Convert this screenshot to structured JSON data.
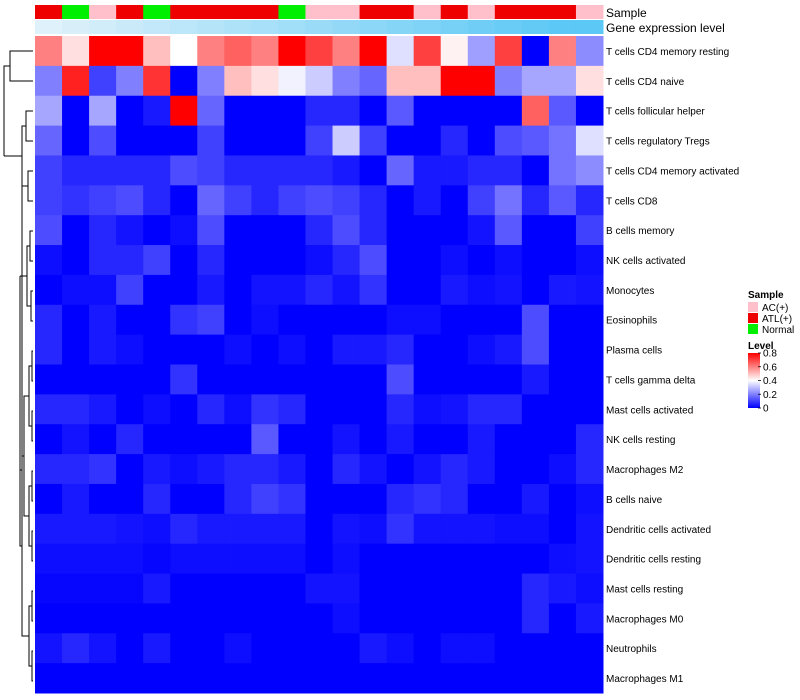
{
  "chart_data": {
    "type": "heatmap",
    "annotation_labels": [
      "Sample",
      "Gene expression level"
    ],
    "rows": [
      "T cells CD4 memory resting",
      "T cells CD4 naive",
      "T cells follicular helper",
      "T cells regulatory  Tregs",
      "T cells CD4 memory activated",
      "T cells CD8",
      "B cells memory",
      "NK cells activated",
      "Monocytes",
      "Eosinophils",
      "Plasma cells",
      "T cells gamma delta",
      "Mast cells activated",
      "NK cells resting",
      "Macrophages M2",
      "B cells naive",
      "Dendritic cells activated",
      "Dendritic cells resting",
      "Mast cells resting",
      "Macrophages M0",
      "Neutrophils",
      "Macrophages M1"
    ],
    "sample_groups": [
      "ATL(+)",
      "Normal",
      "AC(+)",
      "ATL(+)",
      "Normal",
      "ATL(+)",
      "ATL(+)",
      "ATL(+)",
      "ATL(+)",
      "Normal",
      "AC(+)",
      "AC(+)",
      "ATL(+)",
      "ATL(+)",
      "AC(+)",
      "ATL(+)",
      "AC(+)",
      "ATL(+)",
      "ATL(+)",
      "ATL(+)",
      "AC(+)"
    ],
    "gene_expression_level": [
      0.05,
      0.1,
      0.15,
      0.2,
      0.25,
      0.3,
      0.35,
      0.4,
      0.45,
      0.5,
      0.55,
      0.6,
      0.65,
      0.7,
      0.75,
      0.8,
      0.85,
      0.9,
      0.95,
      1.0,
      1.0
    ],
    "values": [
      [
        0.6,
        0.45,
        0.8,
        0.8,
        0.5,
        0.4,
        0.6,
        0.65,
        0.6,
        0.8,
        0.7,
        0.6,
        0.8,
        0.35,
        0.7,
        0.42,
        0.25,
        0.7,
        0.0,
        0.6,
        0.22
      ],
      [
        0.2,
        0.75,
        0.1,
        0.2,
        0.72,
        0.0,
        0.2,
        0.5,
        0.45,
        0.38,
        0.32,
        0.2,
        0.16,
        0.5,
        0.5,
        0.8,
        0.8,
        0.2,
        0.26,
        0.26,
        0.45
      ],
      [
        0.26,
        0.0,
        0.26,
        0.0,
        0.04,
        0.8,
        0.16,
        0.0,
        0.0,
        0.0,
        0.06,
        0.06,
        0.0,
        0.14,
        0.0,
        0.0,
        0.0,
        0.0,
        0.65,
        0.14,
        0.0
      ],
      [
        0.16,
        0.0,
        0.12,
        0.0,
        0.0,
        0.0,
        0.1,
        0.0,
        0.0,
        0.0,
        0.1,
        0.32,
        0.1,
        0.0,
        0.0,
        0.06,
        0.0,
        0.12,
        0.14,
        0.18,
        0.35
      ],
      [
        0.1,
        0.06,
        0.06,
        0.06,
        0.06,
        0.12,
        0.1,
        0.06,
        0.06,
        0.06,
        0.06,
        0.04,
        0.0,
        0.16,
        0.04,
        0.04,
        0.06,
        0.06,
        0.0,
        0.18,
        0.22
      ],
      [
        0.1,
        0.08,
        0.1,
        0.12,
        0.06,
        0.0,
        0.16,
        0.1,
        0.06,
        0.1,
        0.12,
        0.1,
        0.06,
        0.0,
        0.04,
        0.0,
        0.1,
        0.18,
        0.06,
        0.14,
        0.06
      ],
      [
        0.12,
        0.0,
        0.06,
        0.03,
        0.0,
        0.02,
        0.12,
        0.0,
        0.0,
        0.0,
        0.06,
        0.12,
        0.06,
        0.0,
        0.0,
        0.0,
        0.03,
        0.14,
        0.0,
        0.0,
        0.1
      ],
      [
        0.02,
        0.0,
        0.06,
        0.06,
        0.1,
        0.0,
        0.06,
        0.0,
        0.0,
        0.0,
        0.02,
        0.06,
        0.12,
        0.0,
        0.0,
        0.02,
        0.0,
        0.02,
        0.0,
        0.0,
        0.02
      ],
      [
        0.0,
        0.02,
        0.02,
        0.1,
        0.0,
        0.0,
        0.04,
        0.0,
        0.03,
        0.03,
        0.06,
        0.03,
        0.08,
        0.0,
        0.0,
        0.04,
        0.02,
        0.03,
        0.0,
        0.04,
        0.03
      ],
      [
        0.06,
        0.0,
        0.04,
        0.0,
        0.0,
        0.08,
        0.1,
        0.0,
        0.02,
        0.0,
        0.0,
        0.0,
        0.0,
        0.02,
        0.02,
        0.0,
        0.0,
        0.0,
        0.12,
        0.0,
        0.0
      ],
      [
        0.06,
        0.0,
        0.04,
        0.02,
        0.0,
        0.0,
        0.0,
        0.02,
        0.0,
        0.02,
        0.0,
        0.04,
        0.04,
        0.06,
        0.0,
        0.0,
        0.02,
        0.04,
        0.12,
        0.0,
        0.0
      ],
      [
        0.0,
        0.0,
        0.0,
        0.0,
        0.0,
        0.08,
        0.0,
        0.0,
        0.0,
        0.0,
        0.0,
        0.0,
        0.0,
        0.12,
        0.0,
        0.0,
        0.0,
        0.0,
        0.04,
        0.0,
        0.0
      ],
      [
        0.06,
        0.06,
        0.04,
        0.0,
        0.02,
        0.0,
        0.06,
        0.02,
        0.08,
        0.06,
        0.0,
        0.0,
        0.0,
        0.06,
        0.02,
        0.03,
        0.06,
        0.06,
        0.0,
        0.0,
        0.0
      ],
      [
        0.0,
        0.03,
        0.0,
        0.06,
        0.0,
        0.0,
        0.0,
        0.0,
        0.14,
        0.0,
        0.0,
        0.03,
        0.0,
        0.04,
        0.0,
        0.0,
        0.04,
        0.0,
        0.0,
        0.0,
        0.06
      ],
      [
        0.06,
        0.06,
        0.08,
        0.0,
        0.04,
        0.02,
        0.04,
        0.06,
        0.06,
        0.04,
        0.0,
        0.06,
        0.03,
        0.0,
        0.03,
        0.06,
        0.04,
        0.0,
        0.0,
        0.02,
        0.06
      ],
      [
        0.0,
        0.04,
        0.0,
        0.0,
        0.06,
        0.0,
        0.0,
        0.06,
        0.1,
        0.08,
        0.0,
        0.0,
        0.0,
        0.06,
        0.08,
        0.06,
        0.0,
        0.0,
        0.04,
        0.0,
        0.02
      ],
      [
        0.04,
        0.04,
        0.04,
        0.03,
        0.02,
        0.06,
        0.04,
        0.04,
        0.04,
        0.04,
        0.0,
        0.03,
        0.02,
        0.08,
        0.03,
        0.03,
        0.03,
        0.02,
        0.02,
        0.0,
        0.03
      ],
      [
        0.02,
        0.02,
        0.02,
        0.02,
        0.01,
        0.02,
        0.02,
        0.02,
        0.02,
        0.02,
        0.0,
        0.02,
        0.0,
        0.0,
        0.0,
        0.0,
        0.0,
        0.0,
        0.0,
        0.02,
        0.03
      ],
      [
        0.01,
        0.01,
        0.01,
        0.01,
        0.04,
        0.0,
        0.0,
        0.0,
        0.0,
        0.0,
        0.03,
        0.03,
        0.0,
        0.0,
        0.0,
        0.0,
        0.0,
        0.0,
        0.06,
        0.04,
        0.02
      ],
      [
        0.0,
        0.0,
        0.0,
        0.0,
        0.0,
        0.0,
        0.0,
        0.0,
        0.0,
        0.0,
        0.0,
        0.02,
        0.0,
        0.0,
        0.0,
        0.0,
        0.0,
        0.0,
        0.06,
        0.0,
        0.04
      ],
      [
        0.03,
        0.06,
        0.03,
        0.0,
        0.04,
        0.0,
        0.0,
        0.02,
        0.0,
        0.0,
        0.0,
        0.0,
        0.04,
        0.02,
        0.0,
        0.02,
        0.02,
        0.0,
        0.0,
        0.0,
        0.0
      ],
      [
        0.0,
        0.0,
        0.0,
        0.0,
        0.0,
        0.0,
        0.0,
        0.0,
        0.0,
        0.0,
        0.0,
        0.0,
        0.0,
        0.0,
        0.0,
        0.0,
        0.0,
        0.0,
        0.0,
        0.0,
        0.0
      ]
    ],
    "legend": {
      "sample_title": "Sample",
      "sample_items": [
        {
          "label": "AC(+)",
          "color": "#ffc0cb"
        },
        {
          "label": "ATL(+)",
          "color": "#ee0000"
        },
        {
          "label": "Normal",
          "color": "#00ee00"
        }
      ],
      "level_title": "Level",
      "level_range": [
        0,
        0.8
      ],
      "level_ticks": [
        "0.8",
        "0.6",
        "0.4",
        "0.2",
        "0"
      ],
      "level_tick_values": [
        0.8,
        0.6,
        0.4,
        0.2,
        0
      ]
    },
    "colors": {
      "low": "#0000ff",
      "mid": "#ffffff",
      "high": "#ff0000",
      "annotation_low": "#e6f3fb",
      "annotation_high": "#5bc8f5"
    }
  }
}
